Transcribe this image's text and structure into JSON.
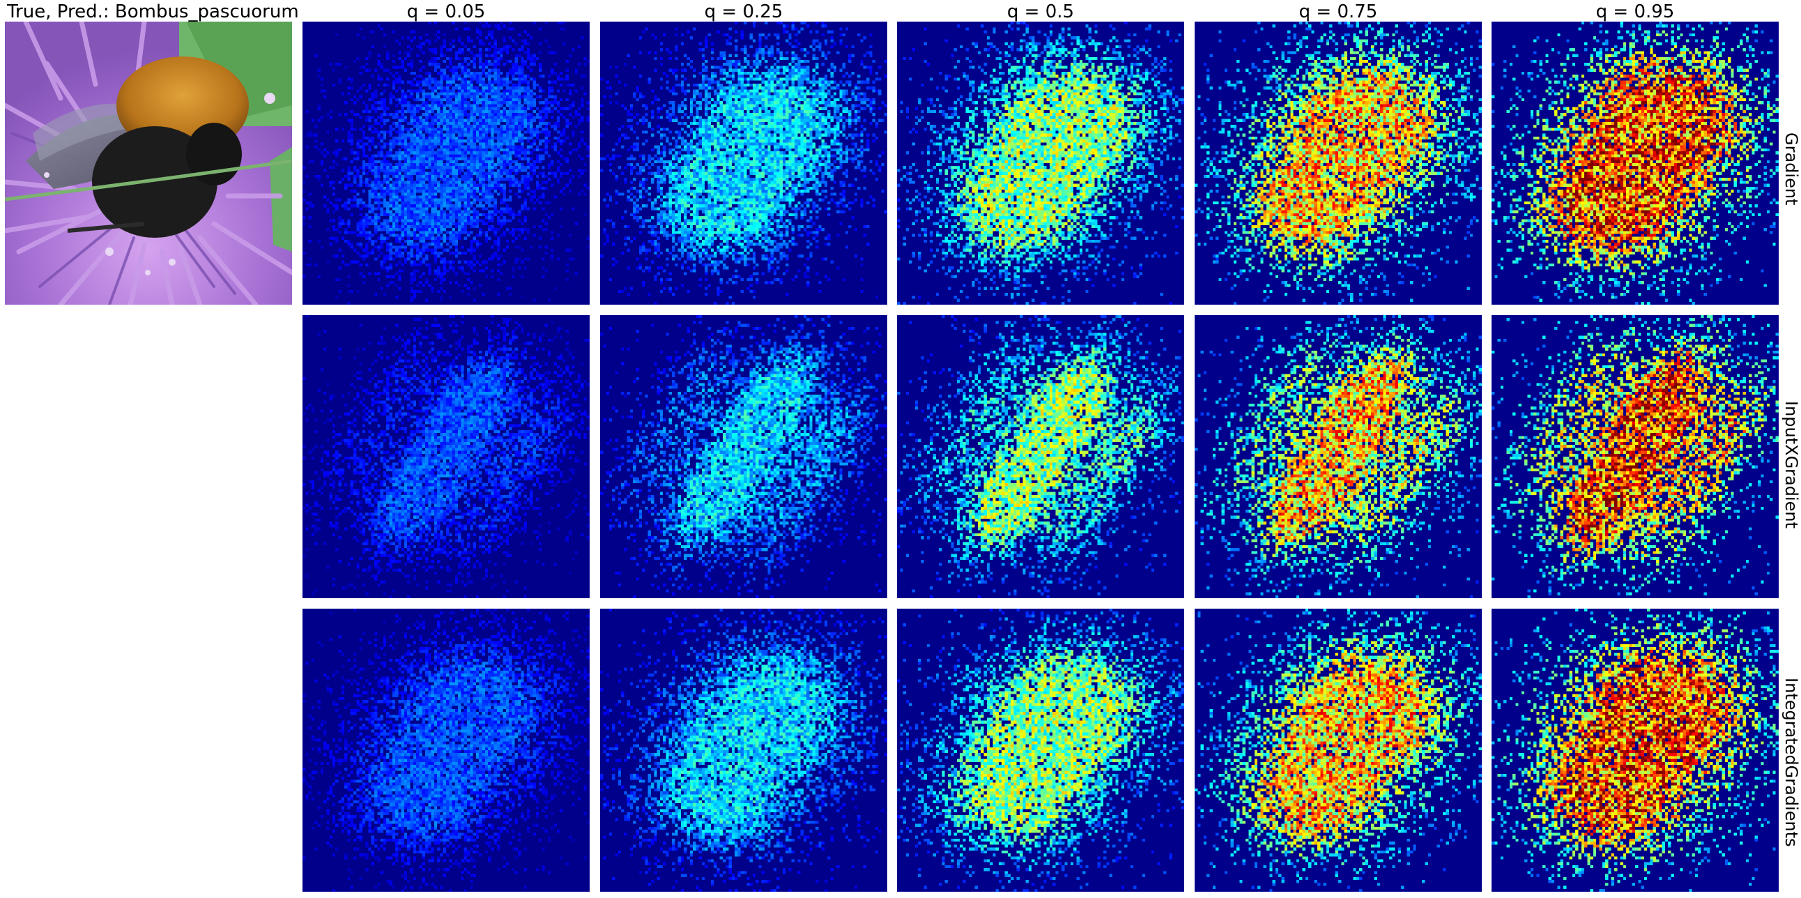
{
  "figure": {
    "input_title": "True, Pred.: Bombus_pascuorum",
    "quantiles": [
      "q = 0.05",
      "q = 0.25",
      "q = 0.5",
      "q = 0.75",
      "q = 0.95"
    ],
    "quantile_values": [
      0.05,
      0.25,
      0.5,
      0.75,
      0.95
    ],
    "methods": [
      "Gradient",
      "InputXGradient",
      "IntegratedGradients"
    ],
    "colormap": "jet",
    "colors": {
      "background": "#ffffff",
      "heatmap_low": "#00008b",
      "petal": "#b07ad6",
      "leaf": "#6bb36a",
      "bee_thorax": "#c8861a",
      "bee_body": "#1a1a1a"
    }
  }
}
